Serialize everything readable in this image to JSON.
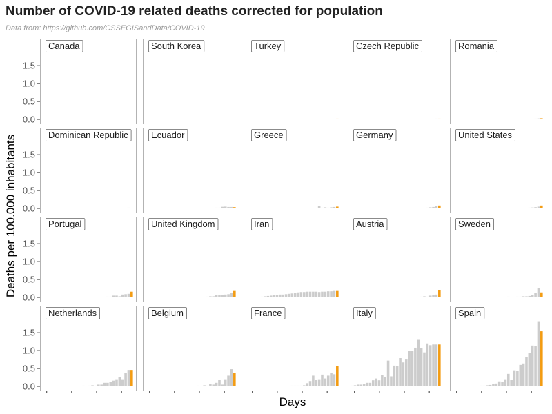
{
  "header": {
    "title": "Number of COVID-19 related deaths corrected for population",
    "subtitle": "Data from: https://github.com/CSSEGISandData/COVID-19"
  },
  "chart_data": {
    "type": "bar",
    "layout": "facet-grid",
    "title": "Number of COVID-19 related deaths corrected for population",
    "subtitle": "Data from: https://github.com/CSSEGISandData/COVID-19",
    "xlabel": "Days",
    "ylabel": "Deaths per 100.000 inhabitants",
    "ylim": [
      0,
      1.85
    ],
    "yticks": [
      0.0,
      0.5,
      1.0,
      1.5
    ],
    "ytick_labels": [
      "0.0",
      "0.5",
      "1.0",
      "1.5"
    ],
    "n_days": 30,
    "grid": false,
    "colors": {
      "bar": "#cccccc",
      "latest_bar": "#f39c12"
    },
    "panels": [
      {
        "name": "Canada",
        "values": [
          0,
          0,
          0,
          0,
          0,
          0,
          0,
          0,
          0,
          0,
          0,
          0,
          0,
          0,
          0,
          0,
          0,
          0,
          0,
          0,
          0.003,
          0,
          0,
          0.003,
          0.005,
          0,
          0.003,
          0.008,
          0.01,
          0.013
        ]
      },
      {
        "name": "South Korea",
        "values": [
          0.01,
          0.004,
          0.006,
          0.008,
          0.004,
          0.006,
          0.008,
          0.006,
          0.01,
          0.006,
          0.008,
          0.006,
          0.008,
          0.01,
          0.006,
          0.008,
          0.006,
          0.008,
          0.01,
          0.008,
          0.006,
          0.01,
          0.008,
          0.006,
          0.01,
          0.008,
          0.006,
          0.01,
          0.012,
          0.01
        ]
      },
      {
        "name": "Turkey",
        "values": [
          0,
          0,
          0,
          0,
          0,
          0,
          0,
          0,
          0,
          0,
          0,
          0,
          0,
          0,
          0,
          0,
          0,
          0,
          0,
          0,
          0,
          0,
          0.001,
          0.002,
          0.004,
          0.006,
          0.008,
          0.012,
          0.016,
          0.02
        ]
      },
      {
        "name": "Czech Republic",
        "values": [
          0,
          0,
          0,
          0,
          0,
          0,
          0,
          0,
          0,
          0,
          0,
          0,
          0,
          0,
          0,
          0,
          0,
          0,
          0,
          0,
          0,
          0,
          0,
          0,
          0.01,
          0.009,
          0.015,
          0.01,
          0.02,
          0.02
        ]
      },
      {
        "name": "Romania",
        "values": [
          0,
          0,
          0,
          0,
          0,
          0,
          0,
          0,
          0,
          0,
          0,
          0,
          0,
          0,
          0,
          0,
          0,
          0,
          0,
          0,
          0,
          0,
          0,
          0,
          0.005,
          0.01,
          0.015,
          0.02,
          0.025,
          0.03
        ]
      },
      {
        "name": "Dominican Republic",
        "values": [
          0,
          0,
          0,
          0,
          0,
          0,
          0,
          0,
          0,
          0,
          0,
          0,
          0,
          0,
          0,
          0,
          0,
          0,
          0,
          0,
          0,
          0.015,
          0,
          0.015,
          0,
          0.015,
          0,
          0,
          0.02,
          0.015
        ]
      },
      {
        "name": "Ecuador",
        "values": [
          0,
          0,
          0,
          0,
          0,
          0,
          0,
          0,
          0,
          0,
          0,
          0,
          0,
          0,
          0,
          0,
          0,
          0,
          0.01,
          0,
          0,
          0,
          0.01,
          0.02,
          0.02,
          0.045,
          0.05,
          0.04,
          0.04,
          0.035
        ]
      },
      {
        "name": "Greece",
        "values": [
          0,
          0,
          0,
          0,
          0,
          0,
          0,
          0,
          0,
          0,
          0,
          0,
          0,
          0,
          0,
          0,
          0,
          0,
          0.01,
          0,
          0.01,
          0.01,
          0.01,
          0.06,
          0.02,
          0.03,
          0.02,
          0.03,
          0.04,
          0.05
        ]
      },
      {
        "name": "Germany",
        "values": [
          0,
          0,
          0,
          0,
          0,
          0,
          0,
          0,
          0,
          0,
          0,
          0,
          0,
          0,
          0,
          0,
          0,
          0.002,
          0.003,
          0.005,
          0.005,
          0.007,
          0.01,
          0.015,
          0.015,
          0.02,
          0.03,
          0.04,
          0.06,
          0.08
        ]
      },
      {
        "name": "United States",
        "values": [
          0,
          0,
          0,
          0,
          0,
          0,
          0,
          0,
          0,
          0,
          0,
          0,
          0,
          0,
          0,
          0,
          0,
          0.002,
          0.003,
          0.003,
          0.005,
          0.007,
          0.01,
          0.013,
          0.015,
          0.02,
          0.025,
          0.035,
          0.05,
          0.08
        ]
      },
      {
        "name": "Portugal",
        "values": [
          0,
          0,
          0,
          0,
          0,
          0,
          0,
          0,
          0,
          0,
          0,
          0,
          0,
          0,
          0,
          0,
          0,
          0,
          0,
          0,
          0.01,
          0.02,
          0.02,
          0.05,
          0.05,
          0.03,
          0.08,
          0.09,
          0.1,
          0.16
        ]
      },
      {
        "name": "United Kingdom",
        "values": [
          0,
          0,
          0,
          0,
          0,
          0,
          0,
          0,
          0,
          0,
          0,
          0,
          0,
          0,
          0,
          0,
          0,
          0,
          0.005,
          0.01,
          0.02,
          0.03,
          0.03,
          0.06,
          0.07,
          0.07,
          0.08,
          0.09,
          0.12,
          0.18
        ]
      },
      {
        "name": "Iran",
        "values": [
          0,
          0.005,
          0.01,
          0.015,
          0.02,
          0.03,
          0.04,
          0.05,
          0.06,
          0.07,
          0.08,
          0.08,
          0.09,
          0.1,
          0.11,
          0.13,
          0.14,
          0.15,
          0.15,
          0.16,
          0.16,
          0.16,
          0.16,
          0.15,
          0.16,
          0.16,
          0.17,
          0.17,
          0.18,
          0.18
        ]
      },
      {
        "name": "Austria",
        "values": [
          0,
          0,
          0,
          0,
          0,
          0,
          0,
          0,
          0,
          0,
          0,
          0,
          0,
          0,
          0,
          0,
          0,
          0,
          0,
          0.01,
          0,
          0.01,
          0,
          0.02,
          0.03,
          0.02,
          0.05,
          0.07,
          0.08,
          0.2
        ]
      },
      {
        "name": "Sweden",
        "values": [
          0,
          0,
          0,
          0,
          0,
          0,
          0,
          0,
          0,
          0,
          0,
          0,
          0,
          0,
          0,
          0,
          0,
          0,
          0.02,
          0.01,
          0.01,
          0.02,
          0.02,
          0.03,
          0.03,
          0.04,
          0.06,
          0.12,
          0.25,
          0.14
        ]
      },
      {
        "name": "Netherlands",
        "values": [
          0,
          0,
          0,
          0,
          0,
          0,
          0,
          0,
          0,
          0,
          0.01,
          0.005,
          0.01,
          0.02,
          0.01,
          0.02,
          0.03,
          0.02,
          0.05,
          0.05,
          0.1,
          0.1,
          0.13,
          0.16,
          0.2,
          0.26,
          0.2,
          0.37,
          0.46,
          0.46
        ]
      },
      {
        "name": "Belgium",
        "values": [
          0,
          0,
          0,
          0,
          0,
          0,
          0,
          0,
          0,
          0,
          0,
          0,
          0,
          0,
          0,
          0,
          0,
          0.02,
          0.01,
          0.03,
          0.02,
          0.07,
          0.05,
          0.1,
          0.18,
          0.05,
          0.2,
          0.3,
          0.48,
          0.37
        ]
      },
      {
        "name": "France",
        "values": [
          0,
          0,
          0,
          0,
          0,
          0,
          0,
          0,
          0,
          0.004,
          0.006,
          0.01,
          0.01,
          0.01,
          0.02,
          0.02,
          0.02,
          0.02,
          0.03,
          0.09,
          0.15,
          0.3,
          0.18,
          0.2,
          0.33,
          0.22,
          0.3,
          0.37,
          0.34,
          0.57
        ]
      },
      {
        "name": "Italy",
        "values": [
          0.02,
          0.03,
          0.05,
          0.05,
          0.07,
          0.1,
          0.1,
          0.17,
          0.22,
          0.17,
          0.32,
          0.27,
          0.72,
          0.28,
          0.58,
          0.57,
          0.79,
          0.67,
          0.75,
          1.0,
          1.0,
          1.08,
          1.3,
          1.07,
          0.95,
          1.2,
          1.15,
          1.17,
          1.17,
          1.17
        ]
      },
      {
        "name": "Spain",
        "values": [
          0,
          0,
          0,
          0,
          0,
          0,
          0,
          0.005,
          0.01,
          0.02,
          0.02,
          0.03,
          0.04,
          0.06,
          0.08,
          0.14,
          0.13,
          0.2,
          0.35,
          0.18,
          0.45,
          0.44,
          0.6,
          0.64,
          0.82,
          0.94,
          1.14,
          1.12,
          1.82,
          1.54
        ]
      }
    ]
  }
}
